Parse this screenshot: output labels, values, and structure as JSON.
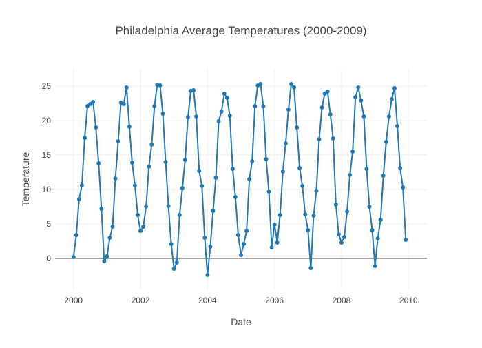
{
  "chart_data": {
    "type": "line",
    "title": "Philadelphia Average Temperatures (2000-2009)",
    "xlabel": "Date",
    "ylabel": "Temperature",
    "xlim": [
      1999.45,
      2010.55
    ],
    "ylim": [
      -4.5,
      27.5
    ],
    "xticks": [
      2000,
      2002,
      2004,
      2006,
      2008,
      2010
    ],
    "yticks": [
      0,
      5,
      10,
      15,
      20,
      25
    ],
    "grid": true,
    "legend": "none",
    "series": [
      {
        "name": "Philadelphia",
        "color": "#1f77b4",
        "x": [
          2000.0,
          2000.0833,
          2000.1667,
          2000.25,
          2000.3333,
          2000.4167,
          2000.5,
          2000.5833,
          2000.6667,
          2000.75,
          2000.8333,
          2000.9167,
          2001.0,
          2001.0833,
          2001.1667,
          2001.25,
          2001.3333,
          2001.4167,
          2001.5,
          2001.5833,
          2001.6667,
          2001.75,
          2001.8333,
          2001.9167,
          2002.0,
          2002.0833,
          2002.1667,
          2002.25,
          2002.3333,
          2002.4167,
          2002.5,
          2002.5833,
          2002.6667,
          2002.75,
          2002.8333,
          2002.9167,
          2003.0,
          2003.0833,
          2003.1667,
          2003.25,
          2003.3333,
          2003.4167,
          2003.5,
          2003.5833,
          2003.6667,
          2003.75,
          2003.8333,
          2003.9167,
          2004.0,
          2004.0833,
          2004.1667,
          2004.25,
          2004.3333,
          2004.4167,
          2004.5,
          2004.5833,
          2004.6667,
          2004.75,
          2004.8333,
          2004.9167,
          2005.0,
          2005.0833,
          2005.1667,
          2005.25,
          2005.3333,
          2005.4167,
          2005.5,
          2005.5833,
          2005.6667,
          2005.75,
          2005.8333,
          2005.9167,
          2006.0,
          2006.0833,
          2006.1667,
          2006.25,
          2006.3333,
          2006.4167,
          2006.5,
          2006.5833,
          2006.6667,
          2006.75,
          2006.8333,
          2006.9167,
          2007.0,
          2007.0833,
          2007.1667,
          2007.25,
          2007.3333,
          2007.4167,
          2007.5,
          2007.5833,
          2007.6667,
          2007.75,
          2007.8333,
          2007.9167,
          2008.0,
          2008.0833,
          2008.1667,
          2008.25,
          2008.3333,
          2008.4167,
          2008.5,
          2008.5833,
          2008.6667,
          2008.75,
          2008.8333,
          2008.9167,
          2009.0,
          2009.0833,
          2009.1667,
          2009.25,
          2009.3333,
          2009.4167,
          2009.5,
          2009.5833,
          2009.6667,
          2009.75,
          2009.8333,
          2009.9167
        ],
        "y": [
          0.2,
          3.4,
          8.6,
          10.6,
          17.5,
          22.1,
          22.4,
          22.7,
          19.0,
          13.8,
          7.2,
          -0.4,
          0.3,
          3.0,
          4.6,
          11.6,
          17.0,
          22.6,
          22.4,
          24.8,
          19.1,
          13.9,
          10.6,
          6.3,
          4.0,
          4.6,
          7.5,
          13.3,
          16.5,
          22.1,
          25.2,
          25.1,
          21.0,
          14.0,
          7.6,
          2.1,
          -1.5,
          -0.6,
          6.3,
          10.2,
          14.3,
          20.5,
          24.3,
          24.4,
          20.6,
          12.7,
          10.5,
          3.0,
          -2.4,
          1.7,
          6.9,
          11.7,
          19.9,
          21.3,
          23.9,
          23.3,
          20.7,
          13.0,
          8.9,
          3.4,
          0.5,
          2.1,
          4.0,
          11.5,
          14.1,
          22.1,
          25.1,
          25.3,
          22.1,
          14.4,
          9.7,
          1.6,
          4.9,
          2.3,
          6.3,
          12.6,
          16.7,
          21.6,
          25.3,
          24.8,
          19.0,
          13.1,
          10.5,
          6.4,
          4.1,
          -1.4,
          6.2,
          9.8,
          17.3,
          21.9,
          23.9,
          24.2,
          20.9,
          17.4,
          7.8,
          3.5,
          2.3,
          3.1,
          6.8,
          12.1,
          15.5,
          23.4,
          24.8,
          22.9,
          20.6,
          13.0,
          7.5,
          4.1,
          -1.1,
          2.9,
          5.6,
          12.0,
          16.9,
          20.6,
          23.1,
          24.7,
          19.2,
          13.1,
          10.3,
          2.7
        ]
      }
    ]
  }
}
